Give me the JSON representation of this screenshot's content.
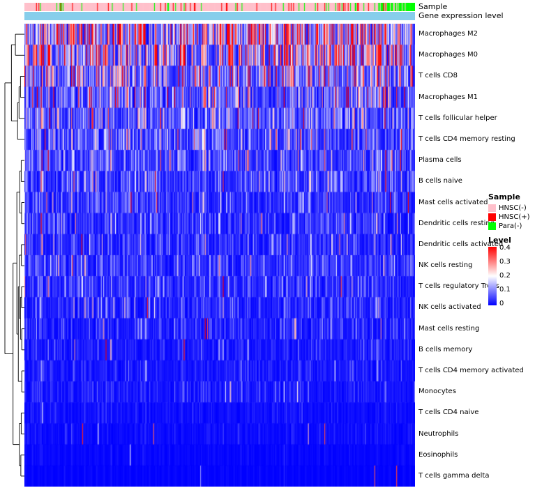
{
  "annotations": {
    "sample_label": "Sample",
    "gene_label": "Gene expression level",
    "gene_bar_color": "#87CEEB"
  },
  "legend": {
    "sample": {
      "title": "Sample",
      "entries": [
        {
          "label": "HNSC(-)",
          "color": "#FFC0CB"
        },
        {
          "label": "HNSC(+)",
          "color": "#FF0000"
        },
        {
          "label": "Para(-)",
          "color": "#00FF00"
        }
      ]
    },
    "level": {
      "title": "Level",
      "ticks": [
        "0.4",
        "0.3",
        "0.2",
        "0.1",
        "0"
      ],
      "colors": {
        "high": "#FF0000",
        "mid": "#FFFFFF",
        "low": "#0000FF"
      },
      "max": 0.4,
      "min": 0
    }
  },
  "chart_data": {
    "type": "heatmap",
    "title": "",
    "n_columns": 500,
    "value_range": [
      0,
      0.4
    ],
    "colormap": [
      "#0000FF",
      "#FFFFFF",
      "#FF0000"
    ],
    "rows": [
      {
        "name": "Macrophages M2",
        "mean": 0.2,
        "spike_prob": 0.02
      },
      {
        "name": "Macrophages M0",
        "mean": 0.165,
        "spike_prob": 0.02
      },
      {
        "name": "T cells CD8",
        "mean": 0.125,
        "spike_prob": 0.02
      },
      {
        "name": "Macrophages M1",
        "mean": 0.085,
        "spike_prob": 0.015
      },
      {
        "name": "T cells follicular helper",
        "mean": 0.072,
        "spike_prob": 0.01
      },
      {
        "name": "T cells CD4 memory resting",
        "mean": 0.07,
        "spike_prob": 0.02
      },
      {
        "name": "Plasma cells",
        "mean": 0.06,
        "spike_prob": 0.02
      },
      {
        "name": "B cells naive",
        "mean": 0.05,
        "spike_prob": 0.015
      },
      {
        "name": "Mast cells activated",
        "mean": 0.042,
        "spike_prob": 0.012
      },
      {
        "name": "Dendritic cells resting",
        "mean": 0.04,
        "spike_prob": 0.012
      },
      {
        "name": "Dendritic cells activated",
        "mean": 0.035,
        "spike_prob": 0.01
      },
      {
        "name": "NK cells resting",
        "mean": 0.04,
        "spike_prob": 0.008
      },
      {
        "name": "T cells regulatory  Tregs",
        "mean": 0.038,
        "spike_prob": 0.008
      },
      {
        "name": "NK cells activated",
        "mean": 0.03,
        "spike_prob": 0.006
      },
      {
        "name": "Mast cells resting",
        "mean": 0.026,
        "spike_prob": 0.006
      },
      {
        "name": "B cells memory",
        "mean": 0.02,
        "spike_prob": 0.008
      },
      {
        "name": "T cells CD4 memory activated",
        "mean": 0.018,
        "spike_prob": 0.006
      },
      {
        "name": "Monocytes",
        "mean": 0.018,
        "spike_prob": 0.005
      },
      {
        "name": "T cells CD4 naive",
        "mean": 0.01,
        "spike_prob": 0.004
      },
      {
        "name": "Neutrophils",
        "mean": 0.008,
        "spike_prob": 0.004
      },
      {
        "name": "Eosinophils",
        "mean": 0.004,
        "spike_prob": 0.002
      },
      {
        "name": "T cells gamma delta",
        "mean": 0.002,
        "spike_prob": 0.001
      }
    ],
    "column_annotation": {
      "name": "Sample",
      "categories": [
        "HNSC(-)",
        "HNSC(+)",
        "Para(-)"
      ],
      "colors": [
        "#FFC0CB",
        "#FF0000",
        "#00FF00"
      ],
      "approx_proportions": [
        0.82,
        0.09,
        0.09
      ],
      "note_pattern": "mostly pink with scattered red and green stripes; dense green block at right end"
    },
    "dendrogram": {
      "h": 1.0,
      "c": [
        {
          "h": 0.64,
          "c": [
            {
              "h": 0.42,
              "c": [
                0,
                1
              ]
            },
            {
              "h": 0.3,
              "c": [
                {
                  "h": 0.22,
                  "c": [
                    {
                      "h": 0.14,
                      "c": [
                        2,
                        3
                      ]
                    },
                    4
                  ]
                },
                5
              ]
            }
          ]
        },
        {
          "h": 0.55,
          "c": [
            {
              "h": 0.34,
              "c": [
                {
                  "h": 0.18,
                  "c": [
                    {
                      "h": 0.1,
                      "c": [
                        6,
                        7
                      ]
                    },
                    {
                      "h": 0.08,
                      "c": [
                        8,
                        9
                      ]
                    }
                  ]
                },
                {
                  "h": 0.26,
                  "c": [
                    {
                      "h": 0.2,
                      "c": [
                        {
                          "h": 0.09,
                          "c": [
                            10,
                            11
                          ]
                        },
                        {
                          "h": 0.14,
                          "c": [
                            {
                              "h": 0.08,
                              "c": [
                                12,
                                13
                              ]
                            },
                            {
                              "h": 0.07,
                              "c": [
                                14,
                                15
                              ]
                            }
                          ]
                        }
                      ]
                    },
                    {
                      "h": 0.07,
                      "c": [
                        16,
                        17
                      ]
                    }
                  ]
                }
              ]
            },
            {
              "h": 0.2,
              "c": [
                {
                  "h": 0.1,
                  "c": [
                    18,
                    19
                  ]
                },
                {
                  "h": 0.12,
                  "c": [
                    20,
                    21
                  ]
                }
              ]
            }
          ]
        }
      ]
    }
  }
}
